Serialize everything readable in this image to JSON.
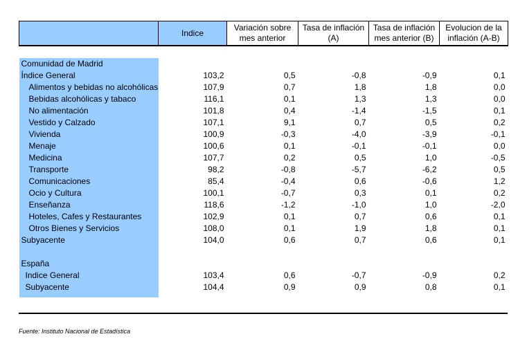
{
  "headers": {
    "label": "",
    "indice": "Indice",
    "variacion": "Variación sobre mes anterior",
    "tasa_a": "Tasa de inflación (A)",
    "tasa_b": "Tasa de inflación mes anterior (B)",
    "evolucion": "Evolucion de la inflación (A-B)"
  },
  "madrid": {
    "region": "Comunidad de Madrid",
    "rows": [
      {
        "label": "Índice General",
        "indice": "103,2",
        "variacion": "0,5",
        "tasa_a": "-0,8",
        "tasa_b": "-0,9",
        "evolucion": "0,1"
      },
      {
        "label": "Alimentos y bebidas no alcohólicas",
        "indice": "107,9",
        "variacion": "0,7",
        "tasa_a": "1,8",
        "tasa_b": "1,8",
        "evolucion": "0,0"
      },
      {
        "label": "Bebidas alcohólicas y tabaco",
        "indice": "116,1",
        "variacion": "0,1",
        "tasa_a": "1,3",
        "tasa_b": "1,3",
        "evolucion": "0,0"
      },
      {
        "label": "No alimentación",
        "indice": "101,8",
        "variacion": "0,4",
        "tasa_a": "-1,4",
        "tasa_b": "-1,5",
        "evolucion": "0,1"
      },
      {
        "label": "Vestido y Calzado",
        "indice": "107,1",
        "variacion": "9,1",
        "tasa_a": "0,7",
        "tasa_b": "0,5",
        "evolucion": "0,2"
      },
      {
        "label": "Vivienda",
        "indice": "100,9",
        "variacion": "-0,3",
        "tasa_a": "-4,0",
        "tasa_b": "-3,9",
        "evolucion": "-0,1"
      },
      {
        "label": "Menaje",
        "indice": "100,6",
        "variacion": "0,1",
        "tasa_a": "-0,1",
        "tasa_b": "-0,1",
        "evolucion": "0,0"
      },
      {
        "label": "Medicina",
        "indice": "107,7",
        "variacion": "0,2",
        "tasa_a": "0,5",
        "tasa_b": "1,0",
        "evolucion": "-0,5"
      },
      {
        "label": "Transporte",
        "indice": "98,2",
        "variacion": "-0,8",
        "tasa_a": "-5,7",
        "tasa_b": "-6,2",
        "evolucion": "0,5"
      },
      {
        "label": "Comunicaciones",
        "indice": "85,4",
        "variacion": "-0,4",
        "tasa_a": "0,6",
        "tasa_b": "-0,6",
        "evolucion": "1,2"
      },
      {
        "label": "Ocio y Cultura",
        "indice": "100,1",
        "variacion": "-0,7",
        "tasa_a": "0,3",
        "tasa_b": "0,1",
        "evolucion": "0,2"
      },
      {
        "label": "Enseñanza",
        "indice": "118,6",
        "variacion": "-1,2",
        "tasa_a": "-1,0",
        "tasa_b": "1,0",
        "evolucion": "-2,0"
      },
      {
        "label": "Hoteles, Cafes y Restaurantes",
        "indice": "102,9",
        "variacion": "0,1",
        "tasa_a": "0,7",
        "tasa_b": "0,6",
        "evolucion": "0,1"
      },
      {
        "label": "Otros Bienes y Servicios",
        "indice": "108,0",
        "variacion": "0,1",
        "tasa_a": "1,9",
        "tasa_b": "1,8",
        "evolucion": "0,1"
      },
      {
        "label": "Subyacente",
        "indice": "104,0",
        "variacion": "0,6",
        "tasa_a": "0,7",
        "tasa_b": "0,6",
        "evolucion": "0,1"
      }
    ]
  },
  "espana": {
    "region": "España",
    "rows": [
      {
        "label": "Indice General",
        "indice": "103,4",
        "variacion": "0,6",
        "tasa_a": "-0,7",
        "tasa_b": "-0,9",
        "evolucion": "0,2"
      },
      {
        "label": "Subyacente",
        "indice": "104,4",
        "variacion": "0,9",
        "tasa_a": "0,9",
        "tasa_b": "0,8",
        "evolucion": "0,1"
      }
    ]
  },
  "source": "Fuente: Instituto Nacional de Estadística",
  "colors": {
    "header_fill": "#99ccff",
    "label_fill": "#99ccff"
  }
}
